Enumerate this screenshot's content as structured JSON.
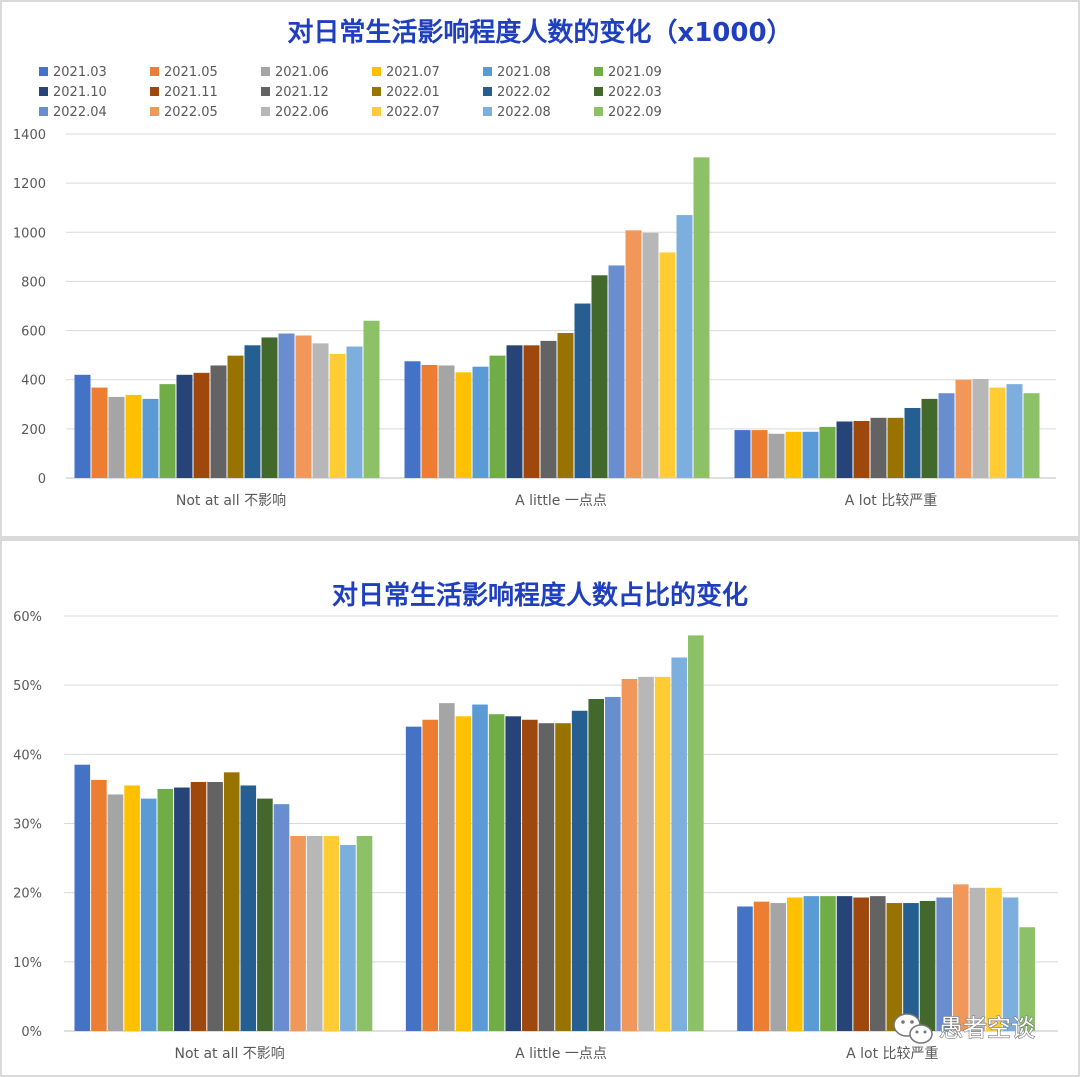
{
  "chart_data": [
    {
      "type": "bar",
      "title": "对日常生活影响程度人数的变化（x1000）",
      "categories": [
        "Not at all 不影响",
        "A little 一点点",
        "A lot 比较严重"
      ],
      "ylim": [
        0,
        1400
      ],
      "yticks": [
        "0",
        "200",
        "400",
        "600",
        "800",
        "1000",
        "1200",
        "1400"
      ],
      "ytick_values": [
        0,
        200,
        400,
        600,
        800,
        1000,
        1200,
        1400
      ],
      "legend_position": "top",
      "series": [
        {
          "name": "2021.03",
          "color": "#4472c4",
          "values": [
            420,
            475,
            195
          ]
        },
        {
          "name": "2021.05",
          "color": "#ed7d31",
          "values": [
            368,
            460,
            195
          ]
        },
        {
          "name": "2021.06",
          "color": "#a5a5a5",
          "values": [
            330,
            458,
            180
          ]
        },
        {
          "name": "2021.07",
          "color": "#ffc000",
          "values": [
            338,
            430,
            188
          ]
        },
        {
          "name": "2021.08",
          "color": "#5b9bd5",
          "values": [
            322,
            453,
            188
          ]
        },
        {
          "name": "2021.09",
          "color": "#70ad47",
          "values": [
            382,
            498,
            208
          ]
        },
        {
          "name": "2021.10",
          "color": "#264478",
          "values": [
            420,
            540,
            230
          ]
        },
        {
          "name": "2021.11",
          "color": "#9e480e",
          "values": [
            428,
            540,
            232
          ]
        },
        {
          "name": "2021.12",
          "color": "#636363",
          "values": [
            458,
            558,
            245
          ]
        },
        {
          "name": "2022.01",
          "color": "#997300",
          "values": [
            498,
            590,
            245
          ]
        },
        {
          "name": "2022.02",
          "color": "#255e91",
          "values": [
            540,
            710,
            285
          ]
        },
        {
          "name": "2022.03",
          "color": "#43682b",
          "values": [
            572,
            825,
            322
          ]
        },
        {
          "name": "2022.04",
          "color": "#698ed0",
          "values": [
            588,
            865,
            345
          ]
        },
        {
          "name": "2022.05",
          "color": "#f1975a",
          "values": [
            580,
            1008,
            400
          ]
        },
        {
          "name": "2022.06",
          "color": "#b7b7b7",
          "values": [
            548,
            998,
            403
          ]
        },
        {
          "name": "2022.07",
          "color": "#ffcd33",
          "values": [
            505,
            918,
            368
          ]
        },
        {
          "name": "2022.08",
          "color": "#7cafdd",
          "values": [
            535,
            1070,
            382
          ]
        },
        {
          "name": "2022.09",
          "color": "#8cc168",
          "values": [
            640,
            1305,
            345
          ]
        }
      ]
    },
    {
      "type": "bar",
      "title": "对日常生活影响程度人数占比的变化",
      "categories": [
        "Not at all 不影响",
        "A little 一点点",
        "A lot 比较严重"
      ],
      "ylim": [
        0,
        60
      ],
      "yticks": [
        "0%",
        "10%",
        "20%",
        "30%",
        "40%",
        "50%",
        "60%"
      ],
      "ytick_values": [
        0,
        10,
        20,
        30,
        40,
        50,
        60
      ],
      "series": [
        {
          "name": "2021.03",
          "color": "#4472c4",
          "values": [
            38.5,
            44.0,
            18.0
          ]
        },
        {
          "name": "2021.05",
          "color": "#ed7d31",
          "values": [
            36.3,
            45.0,
            18.7
          ]
        },
        {
          "name": "2021.06",
          "color": "#a5a5a5",
          "values": [
            34.2,
            47.4,
            18.5
          ]
        },
        {
          "name": "2021.07",
          "color": "#ffc000",
          "values": [
            35.5,
            45.5,
            19.3
          ]
        },
        {
          "name": "2021.08",
          "color": "#5b9bd5",
          "values": [
            33.6,
            47.2,
            19.5
          ]
        },
        {
          "name": "2021.09",
          "color": "#70ad47",
          "values": [
            35.0,
            45.8,
            19.5
          ]
        },
        {
          "name": "2021.10",
          "color": "#264478",
          "values": [
            35.2,
            45.5,
            19.5
          ]
        },
        {
          "name": "2021.11",
          "color": "#9e480e",
          "values": [
            36.0,
            45.0,
            19.3
          ]
        },
        {
          "name": "2021.12",
          "color": "#636363",
          "values": [
            36.0,
            44.5,
            19.5
          ]
        },
        {
          "name": "2022.01",
          "color": "#997300",
          "values": [
            37.4,
            44.5,
            18.5
          ]
        },
        {
          "name": "2022.02",
          "color": "#255e91",
          "values": [
            35.5,
            46.3,
            18.5
          ]
        },
        {
          "name": "2022.03",
          "color": "#43682b",
          "values": [
            33.6,
            48.0,
            18.8
          ]
        },
        {
          "name": "2022.04",
          "color": "#698ed0",
          "values": [
            32.8,
            48.3,
            19.3
          ]
        },
        {
          "name": "2022.05",
          "color": "#f1975a",
          "values": [
            28.2,
            50.9,
            21.2
          ]
        },
        {
          "name": "2022.06",
          "color": "#b7b7b7",
          "values": [
            28.2,
            51.2,
            20.7
          ]
        },
        {
          "name": "2022.07",
          "color": "#ffcd33",
          "values": [
            28.2,
            51.2,
            20.7
          ]
        },
        {
          "name": "2022.08",
          "color": "#7cafdd",
          "values": [
            26.9,
            54.0,
            19.3
          ]
        },
        {
          "name": "2022.09",
          "color": "#8cc168",
          "values": [
            28.2,
            57.2,
            15.0
          ]
        }
      ]
    }
  ],
  "watermark": {
    "text": "愚者空谈",
    "icon": "wechat-icon"
  }
}
